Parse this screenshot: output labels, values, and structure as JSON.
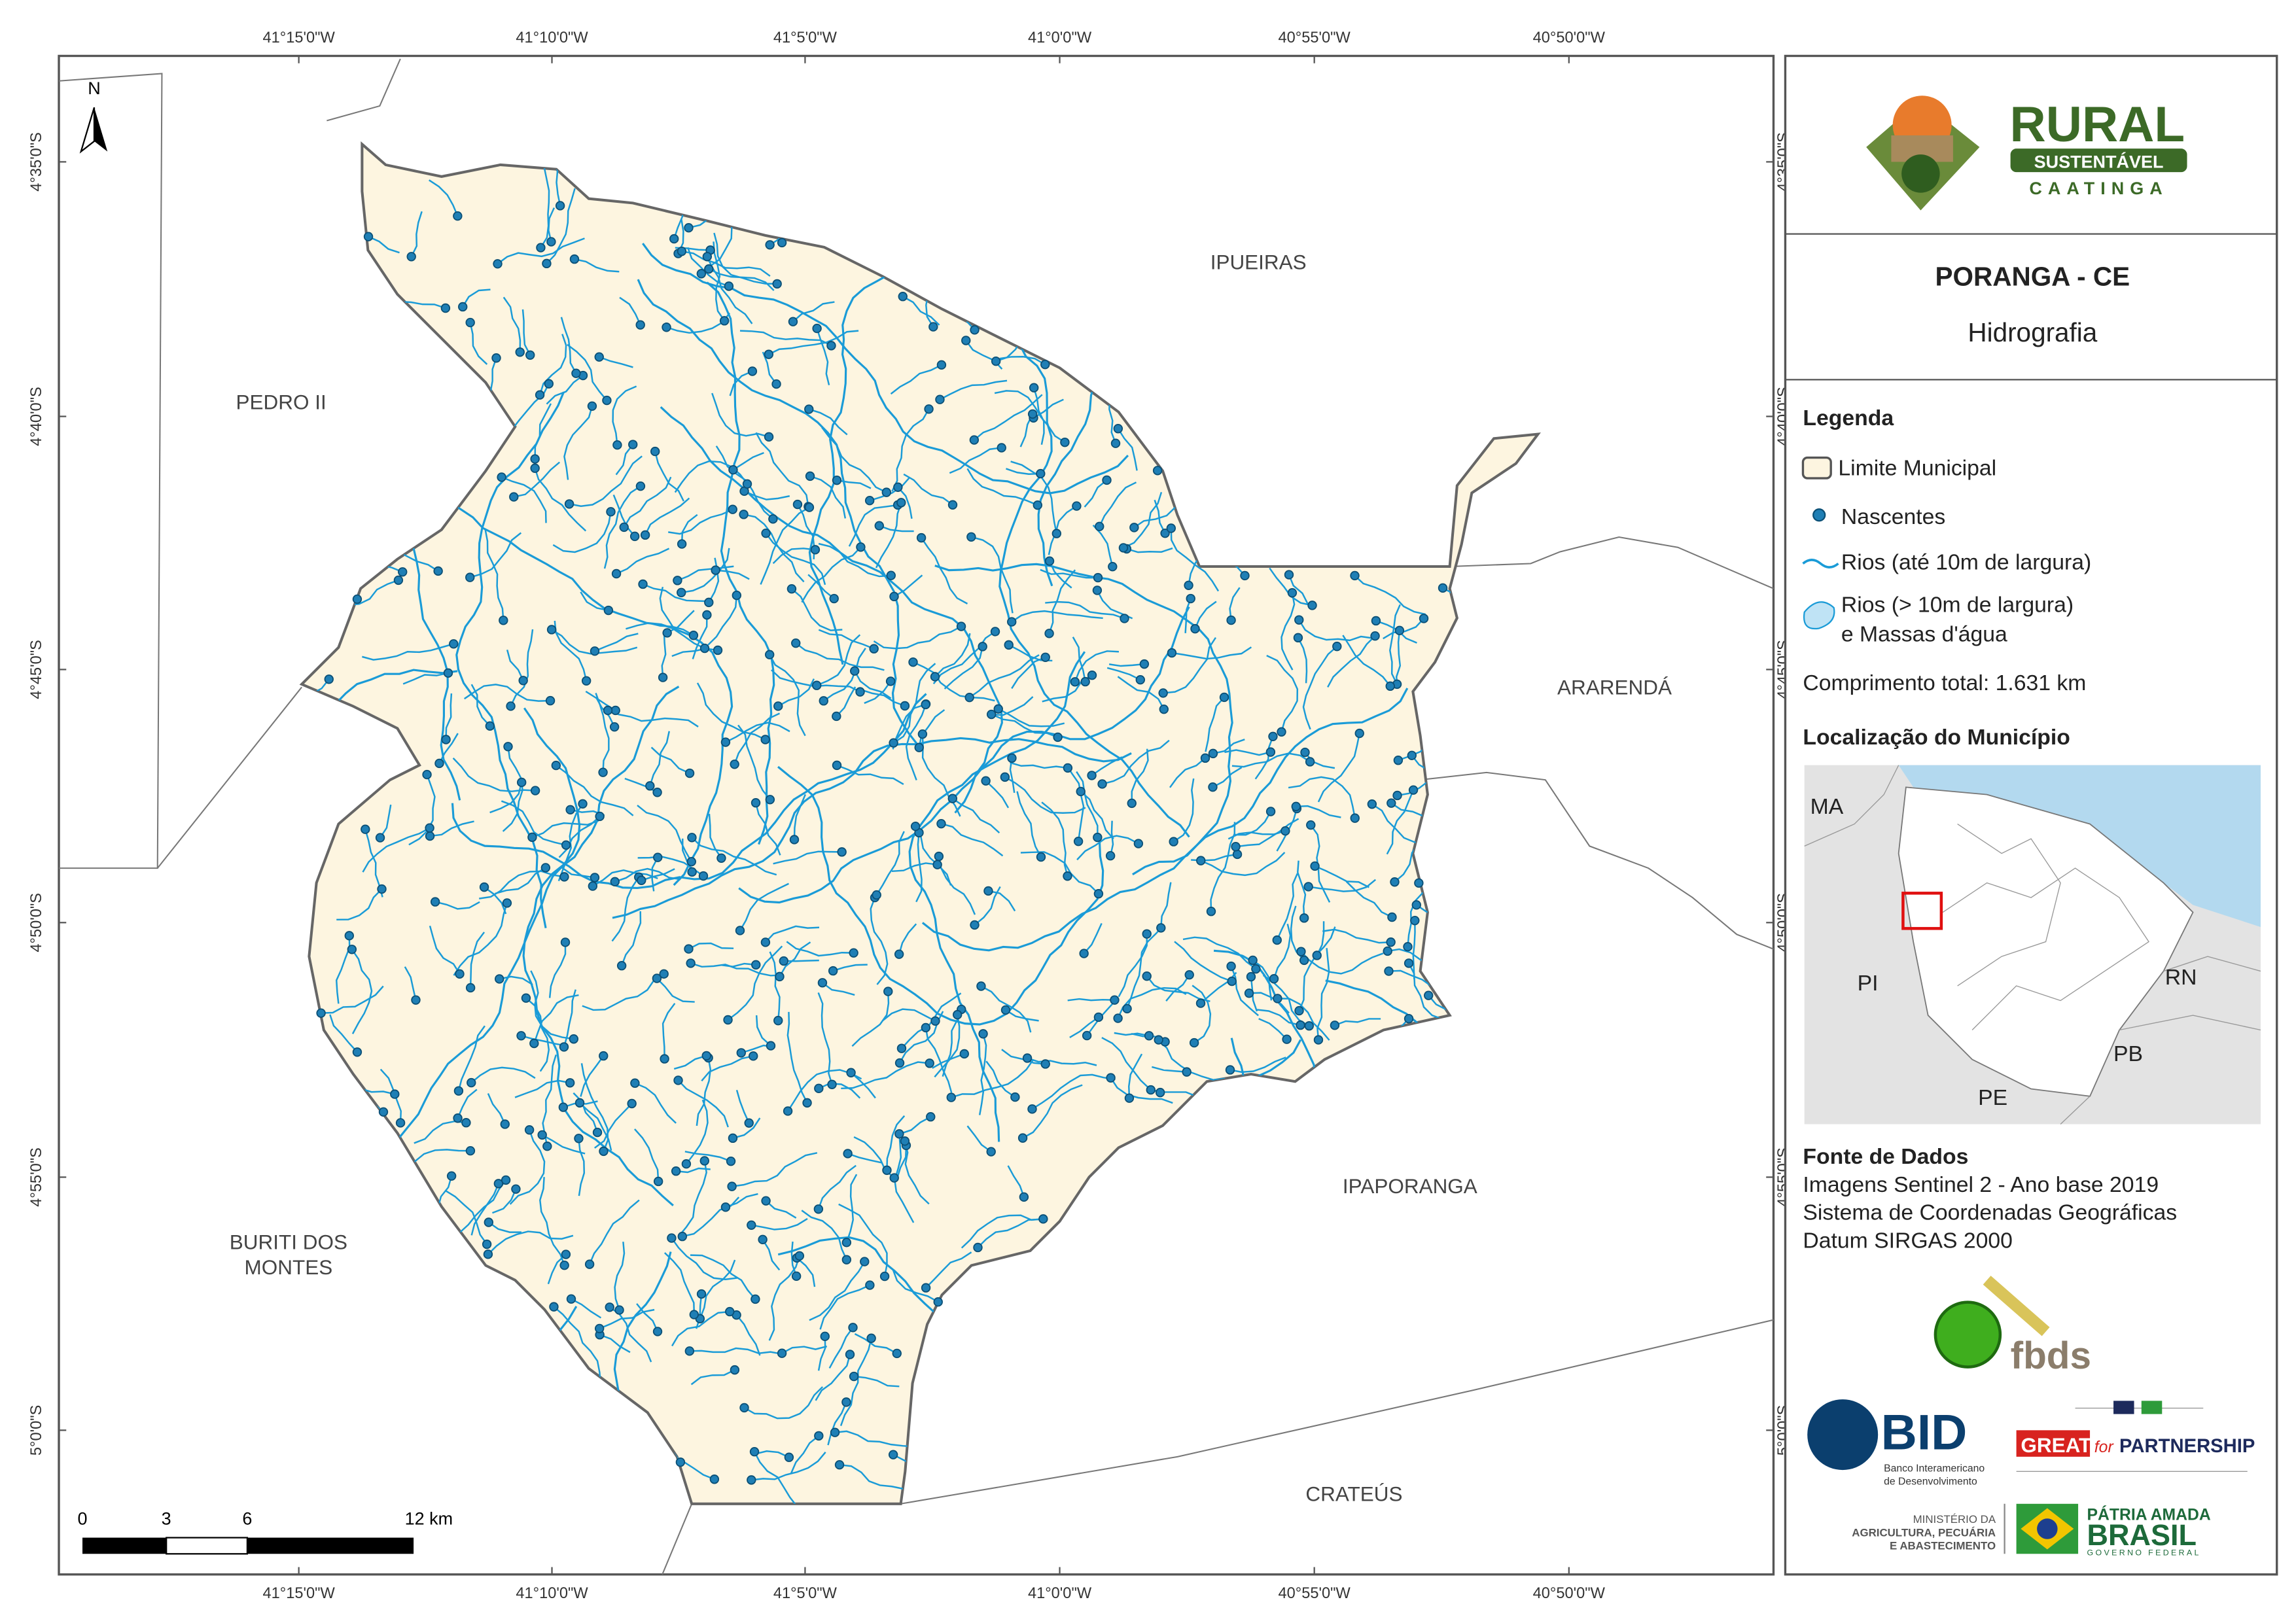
{
  "coordinates": {
    "longitude": [
      "41°15'0\"W",
      "41°10'0\"W",
      "41°5'0\"W",
      "41°0'0\"W",
      "40°55'0\"W",
      "40°50'0\"W"
    ],
    "latitude": [
      "4°35'0\"S",
      "4°40'0\"S",
      "4°45'0\"S",
      "4°50'0\"S",
      "4°55'0\"S",
      "5°0'0\"S"
    ]
  },
  "north_arrow": "N",
  "neighbors": {
    "ipueiras": "IPUEIRAS",
    "pedro_ii": "PEDRO II",
    "ararenda": "ARARENDÁ",
    "ipaporanga": "IPAPORANGA",
    "buriti": [
      "BURITI DOS",
      "MONTES"
    ],
    "crateus": "CRATEÚS"
  },
  "scale_bar": [
    "0",
    "3",
    "6",
    "12 km"
  ],
  "logo": {
    "line1": "RURAL",
    "line2": "SUSTENTÁVEL",
    "line3": "CAATINGA"
  },
  "header": {
    "title": "PORANGA - CE",
    "subtitle": "Hidrografia"
  },
  "legend": {
    "title": "Legenda",
    "items": [
      "Limite Municipal",
      "Nascentes",
      "Rios (até 10m de largura)",
      [
        "Rios (> 10m de largura)",
        "e Massas d'água"
      ]
    ],
    "total": "Comprimento total:  1.631 km"
  },
  "location": {
    "title": "Localização do Município",
    "states": [
      "MA",
      "PI",
      "RN",
      "PB",
      "PE"
    ]
  },
  "sources": {
    "title": "Fonte de Dados",
    "lines": [
      "Imagens Sentinel 2 - Ano base 2019",
      "Sistema de Coordenadas Geográficas",
      "Datum SIRGAS 2000"
    ]
  },
  "partners": {
    "fbds": "fbds",
    "bid": "BID",
    "bid_name": [
      "Banco Interamericano",
      "de Desenvolvimento"
    ],
    "great": "GREAT",
    "great_for": "for",
    "great_partnership": "PARTNERSHIP",
    "ministry": [
      "MINISTÉRIO DA",
      "AGRICULTURA, PECUÁRIA",
      "E ABASTECIMENTO"
    ],
    "brasil": [
      "PÁTRIA AMADA",
      "BRASIL",
      "GOVERNO FEDERAL"
    ]
  }
}
